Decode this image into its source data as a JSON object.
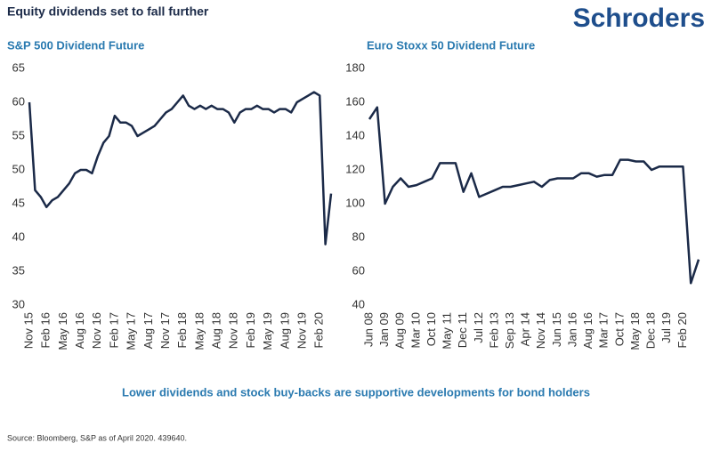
{
  "header": {
    "title": "Equity dividends set to fall further",
    "logo": "Schroders"
  },
  "chart_data": [
    {
      "type": "line",
      "title": "S&P 500 Dividend Future",
      "color": "#1b2a48",
      "categories": [
        "Nov 15",
        null,
        null,
        "Feb 16",
        null,
        null,
        "May 16",
        null,
        null,
        "Aug 16",
        null,
        null,
        "Nov 16",
        null,
        null,
        "Feb 17",
        null,
        null,
        "May 17",
        null,
        null,
        "Aug 17",
        null,
        null,
        "Nov 17",
        null,
        null,
        "Feb 18",
        null,
        null,
        "May 18",
        null,
        null,
        "Aug 18",
        null,
        null,
        "Nov 18",
        null,
        null,
        "Feb 19",
        null,
        null,
        "May 19",
        null,
        null,
        "Aug 19",
        null,
        null,
        "Nov 19",
        null,
        null,
        "Feb 20",
        null,
        null
      ],
      "values": [
        60,
        47,
        46,
        44.5,
        45.5,
        46,
        47,
        48,
        49.5,
        50,
        50,
        49.5,
        52,
        54,
        55,
        58,
        57,
        57,
        56.5,
        55,
        55.5,
        56,
        56.5,
        57.5,
        58.5,
        59,
        60,
        61,
        59.5,
        59,
        59.5,
        59,
        59.5,
        59,
        59,
        58.5,
        57,
        58.5,
        59,
        59,
        59.5,
        59,
        59,
        58.5,
        59,
        59,
        58.5,
        60,
        60.5,
        61,
        61.5,
        61,
        39,
        46.5
      ],
      "ylim": [
        30,
        65
      ],
      "yticks": [
        30,
        35,
        40,
        45,
        50,
        55,
        60,
        65
      ]
    },
    {
      "type": "line",
      "title": "Euro Stoxx 50 Dividend Future",
      "color": "#1b2a48",
      "categories": [
        "Jun 08",
        null,
        "Jan 09",
        null,
        "Aug 09",
        null,
        "Mar 10",
        null,
        "Oct 10",
        null,
        "May 11",
        null,
        "Dec 11",
        null,
        "Jul 12",
        null,
        "Feb 13",
        null,
        "Sep 13",
        null,
        "Apr 14",
        null,
        "Nov 14",
        null,
        "Jun 15",
        null,
        "Jan 16",
        null,
        "Aug 16",
        null,
        "Mar 17",
        null,
        "Oct 17",
        null,
        "May 18",
        null,
        "Dec 18",
        null,
        "Jul 19",
        null,
        "Feb 20",
        null,
        null
      ],
      "values": [
        150,
        157,
        100,
        110,
        115,
        110,
        111,
        113,
        115,
        124,
        124,
        124,
        107,
        118,
        104,
        106,
        108,
        110,
        110,
        111,
        112,
        113,
        110,
        114,
        115,
        115,
        115,
        118,
        118,
        116,
        117,
        117,
        126,
        126,
        125,
        125,
        120,
        122,
        122,
        122,
        122,
        53,
        67
      ],
      "ylim": [
        40,
        180
      ],
      "yticks": [
        40,
        60,
        80,
        100,
        120,
        140,
        160,
        180
      ]
    }
  ],
  "caption": "Lower dividends and stock buy-backs are supportive developments for bond holders",
  "source": "Source: Bloomberg, S&P as of April 2020. 439640."
}
